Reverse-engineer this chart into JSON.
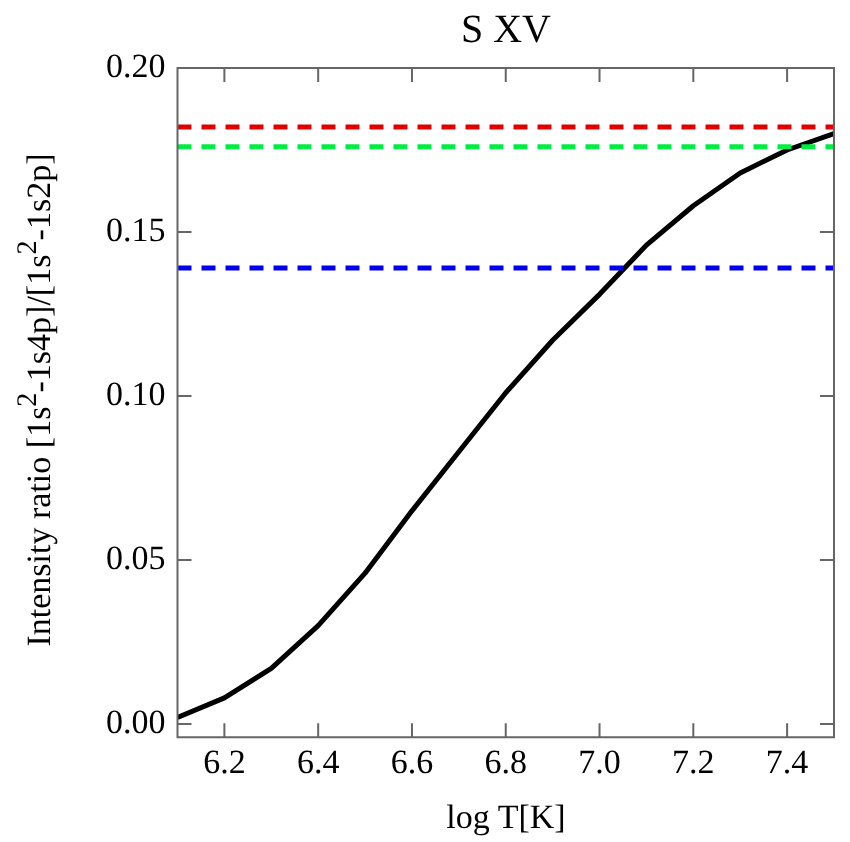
{
  "chart_data": {
    "type": "line",
    "title": "S XV",
    "xlabel": "log T[K]",
    "ylabel": "Intensity ratio [1s$^{2}$-1s4p]/[1s$^{2}$-1s2p]",
    "x": [
      6.1,
      6.2,
      6.3,
      6.4,
      6.5,
      6.6,
      6.7,
      6.8,
      6.9,
      7.0,
      7.1,
      7.2,
      7.3,
      7.4,
      7.5
    ],
    "series": [
      {
        "color": "#000000",
        "values": [
          0.002,
          0.008,
          0.017,
          0.03,
          0.046,
          0.065,
          0.083,
          0.101,
          0.117,
          0.131,
          0.146,
          0.158,
          0.168,
          0.175,
          0.18
        ]
      }
    ],
    "ref_lines": [
      {
        "axis": "y",
        "value": 0.182,
        "color": "#e00000",
        "line_style": "dashed"
      },
      {
        "axis": "y",
        "value": 0.176,
        "color": "#00ee44",
        "line_style": "dashed"
      },
      {
        "axis": "y",
        "value": 0.139,
        "color": "#0000ee",
        "line_style": "dashed"
      }
    ],
    "xlim": [
      6.1,
      7.5
    ],
    "xticks": [
      6.2,
      6.4,
      6.6,
      6.8,
      {
        "value": 7,
        "label": "7.0"
      },
      7.2,
      7.4
    ],
    "ylim": [
      -0.004,
      0.2
    ],
    "yticks": [
      {
        "value": 0,
        "label": "0.00"
      },
      {
        "value": 0.05,
        "label": "0.05"
      },
      {
        "value": 0.1,
        "label": "0.10"
      },
      {
        "value": 0.15,
        "label": "0.15"
      },
      {
        "value": 0.2,
        "label": "0.20"
      }
    ],
    "grid": false,
    "legend": false,
    "marker": "none",
    "line_style": "solid"
  }
}
